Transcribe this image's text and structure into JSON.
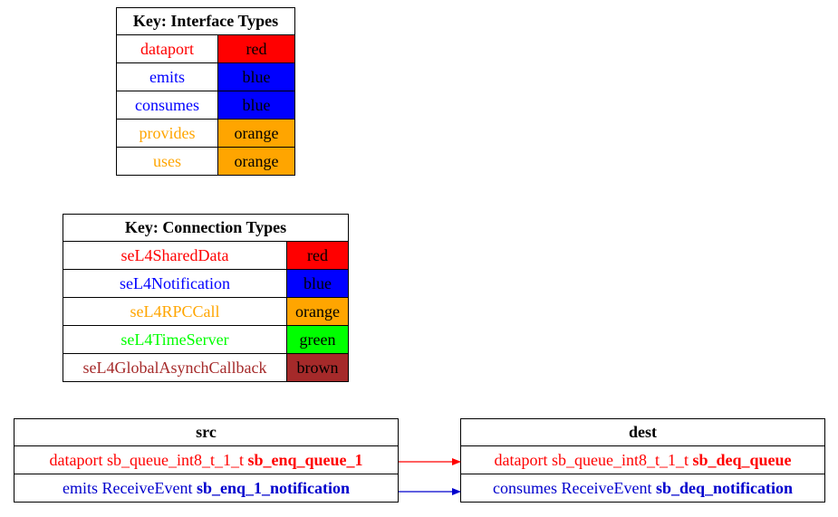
{
  "interface_key": {
    "title": "Key: Interface Types",
    "rows": [
      {
        "name": "dataport",
        "color_label": "red",
        "color": "#ff0000",
        "text_color": "#ff0000"
      },
      {
        "name": "emits",
        "color_label": "blue",
        "color": "#0000ff",
        "text_color": "#0000ff"
      },
      {
        "name": "consumes",
        "color_label": "blue",
        "color": "#0000ff",
        "text_color": "#0000ff"
      },
      {
        "name": "provides",
        "color_label": "orange",
        "color": "#ffa500",
        "text_color": "#ffa500"
      },
      {
        "name": "uses",
        "color_label": "orange",
        "color": "#ffa500",
        "text_color": "#ffa500"
      }
    ]
  },
  "connection_key": {
    "title": "Key: Connection Types",
    "rows": [
      {
        "name": "seL4SharedData",
        "color_label": "red",
        "color": "#ff0000",
        "text_color": "#ff0000"
      },
      {
        "name": "seL4Notification",
        "color_label": "blue",
        "color": "#0000ff",
        "text_color": "#0000ff"
      },
      {
        "name": "seL4RPCCall",
        "color_label": "orange",
        "color": "#ffa500",
        "text_color": "#ffa500"
      },
      {
        "name": "seL4TimeServer",
        "color_label": "green",
        "color": "#00ff00",
        "text_color": "#00ff00"
      },
      {
        "name": "seL4GlobalAsynchCallback",
        "color_label": "brown",
        "color": "#a52a2a",
        "text_color": "#a52a2a"
      }
    ]
  },
  "src": {
    "title": "src",
    "ports": [
      {
        "prefix": "dataport sb_queue_int8_t_1_t",
        "name": "sb_enq_queue_1",
        "color": "#ff0000"
      },
      {
        "prefix": "emits ReceiveEvent",
        "name": "sb_enq_1_notification",
        "color": "#0000cd"
      }
    ]
  },
  "dest": {
    "title": "dest",
    "ports": [
      {
        "prefix": "dataport sb_queue_int8_t_1_t",
        "name": "sb_deq_queue",
        "color": "#ff0000"
      },
      {
        "prefix": "consumes ReceiveEvent",
        "name": "sb_deq_notification",
        "color": "#0000cd"
      }
    ]
  },
  "edges": [
    {
      "from": "src.0",
      "to": "dest.0",
      "color": "#ff0000"
    },
    {
      "from": "src.1",
      "to": "dest.1",
      "color": "#0000cd"
    }
  ]
}
